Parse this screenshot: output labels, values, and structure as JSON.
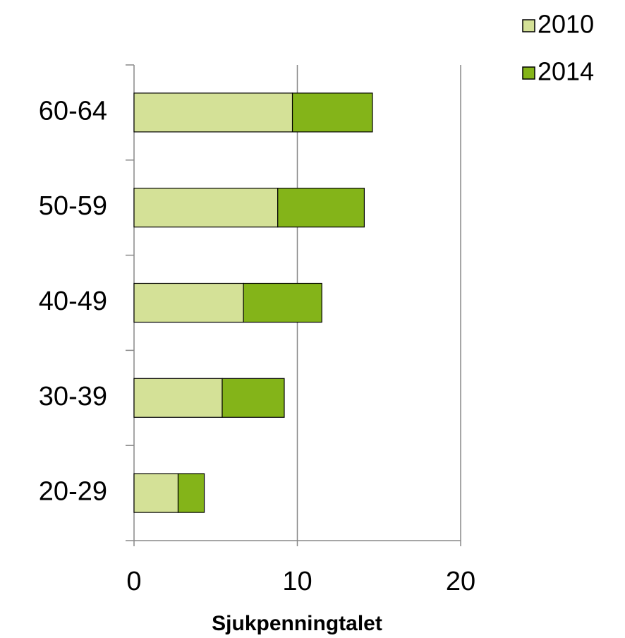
{
  "chart_data": {
    "type": "stacked-bar-horizontal",
    "x_label": "Sjukpenningtalet",
    "categories": [
      "60-64",
      "50-59",
      "40-49",
      "30-39",
      "20-29"
    ],
    "series": [
      {
        "name": "2010",
        "color": "#d4e197",
        "values": [
          9.7,
          8.8,
          6.7,
          5.4,
          2.7
        ]
      },
      {
        "name": "2014",
        "color": "#84b419",
        "values": [
          4.9,
          5.3,
          4.8,
          3.8,
          1.6
        ]
      }
    ],
    "xlim": [
      0,
      20
    ],
    "xticks": [
      0,
      10,
      20
    ],
    "grid": true,
    "legend": "top-right"
  }
}
